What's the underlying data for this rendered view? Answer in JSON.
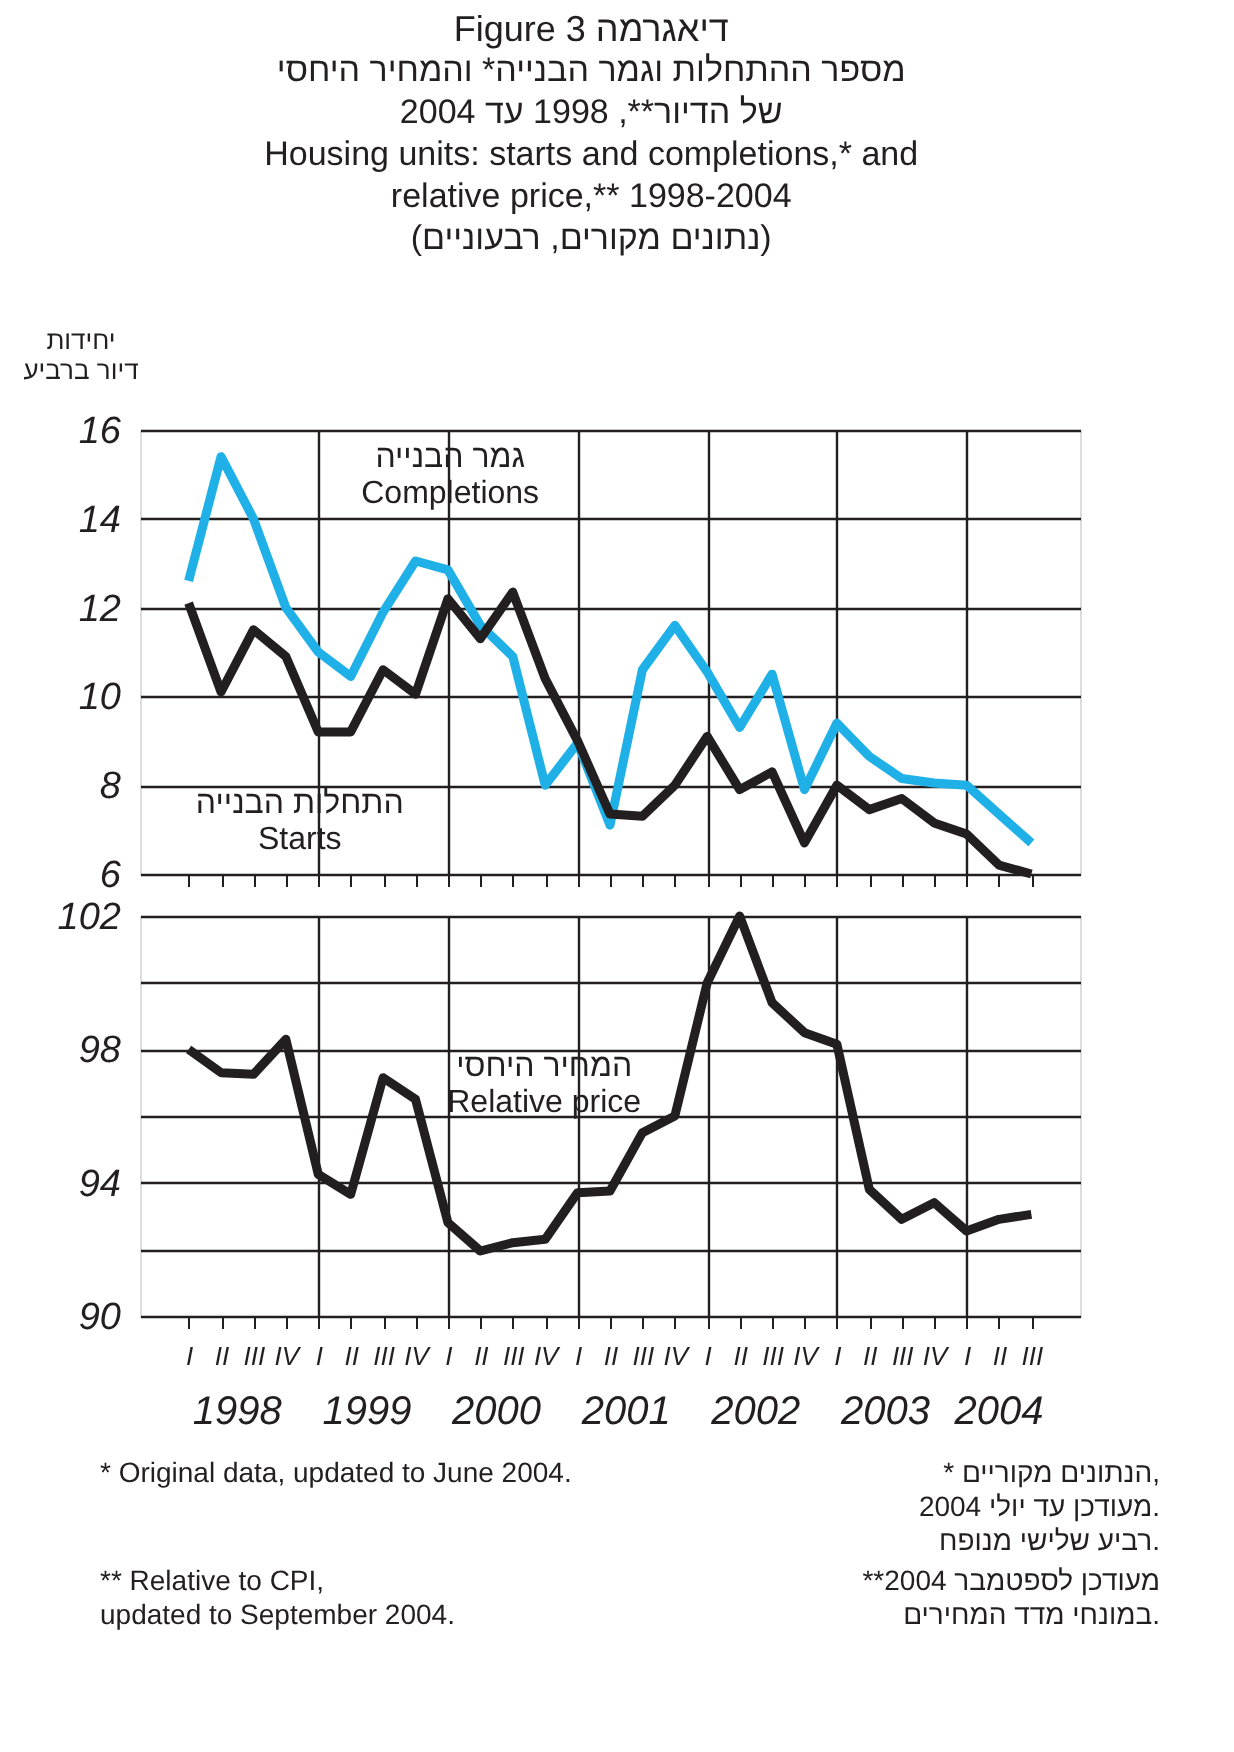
{
  "chart_data": [
    {
      "type": "line",
      "title": "Figure 3 דיאגרמה",
      "subtitle": "מספר ההתחלות וגמר הבנייה* והמחיר היחסי\nשל הדיור**, 1998 עד 2004\nHousing units: starts and completions,* and\nrelative price,** 1998-2004\n(נתונים מקורים, רבעוניים)",
      "ylabel": "יחידות\nדיור ברביע",
      "categories": [
        null,
        null,
        null,
        null,
        null,
        null,
        null,
        null,
        null,
        null,
        null,
        null,
        null,
        null,
        null,
        null,
        null,
        null,
        null,
        null,
        null,
        null,
        null,
        null,
        null,
        null,
        null
      ],
      "series": [
        {
          "name": "גמר הבנייה\nCompletions",
          "color": "#1eb0e6",
          "values": [
            12.6,
            15.4,
            14.0,
            12.0,
            11.0,
            10.45,
            11.9,
            13.05,
            12.85,
            11.6,
            10.9,
            8.0,
            8.95,
            7.1,
            10.6,
            11.6,
            10.55,
            9.3,
            10.5,
            7.9,
            9.4,
            8.65,
            8.15,
            8.05,
            8.0,
            7.35,
            6.7
          ]
        },
        {
          "name": "התחלות הבנייה\nStarts",
          "color": "#231f20",
          "values": [
            12.1,
            10.1,
            11.5,
            10.9,
            9.2,
            9.2,
            10.6,
            10.05,
            12.2,
            11.3,
            12.35,
            10.4,
            9.0,
            7.35,
            7.3,
            8.0,
            9.1,
            7.9,
            8.3,
            6.7,
            8.0,
            7.45,
            7.7,
            7.15,
            6.9,
            6.2,
            6.0
          ]
        }
      ],
      "ylim": [
        6,
        16
      ],
      "yticks": [
        6,
        8,
        10,
        12,
        14,
        16
      ],
      "grid": true,
      "tick_labels": "y",
      "line_style": "solid",
      "marker": "none"
    },
    {
      "type": "line",
      "categories": [
        "I",
        "II",
        "III",
        "IV",
        "I",
        "II",
        "III",
        "IV",
        "I",
        "II",
        "III",
        "IV",
        "I",
        "II",
        "III",
        "IV",
        "I",
        "II",
        "III",
        "IV",
        "I",
        "II",
        "III",
        "IV",
        "I",
        "II",
        "III"
      ],
      "series": [
        {
          "name": "המחיר היחסי\nRelative price",
          "color": "#231f20",
          "values": [
            98.0,
            97.3,
            97.25,
            98.3,
            94.25,
            93.65,
            97.15,
            96.5,
            92.8,
            91.95,
            92.2,
            92.3,
            93.7,
            93.75,
            95.5,
            96.0,
            100.0,
            102.0,
            99.4,
            98.5,
            98.15,
            93.8,
            92.9,
            93.4,
            92.55,
            92.9,
            93.05
          ]
        }
      ],
      "ylim": [
        90,
        102
      ],
      "yticks": [
        90,
        {
          "value": 92,
          "label": null
        },
        94,
        {
          "value": 96,
          "label": null
        },
        98,
        {
          "value": 100,
          "label": null
        },
        102
      ],
      "grid": true,
      "line_style": "solid",
      "marker": "none",
      "annotations": [
        "1998",
        "1999",
        "2000",
        "2001",
        "2002",
        "2003",
        "2004",
        "*  Original data, updated to June 2004.",
        "**  Relative to CPI,\n     updated to September 2004.",
        "* הנתונים מקוריים,\nמעודכן עד יולי 2004.\nרביע שלישי מנופח.",
        "**מעודכן לספטמבר 2004\nבמונחי מדד המחירים."
      ]
    }
  ]
}
